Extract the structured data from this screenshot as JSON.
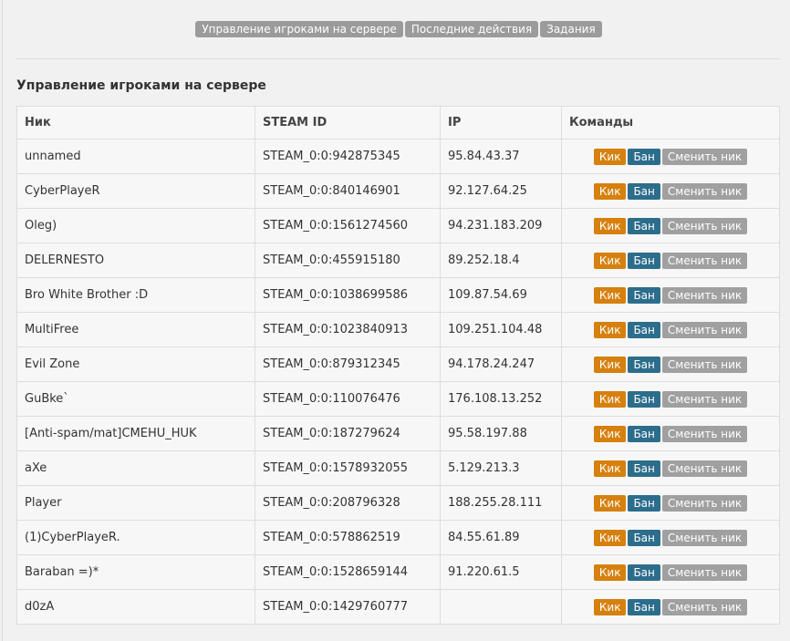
{
  "tabs": [
    "Управление игроками на сервере",
    "Последние действия",
    "Задания"
  ],
  "section_title": "Управление игроками на сервере",
  "table": {
    "headers": [
      "Ник",
      "STEAM ID",
      "IP",
      "Команды"
    ],
    "rows": [
      [
        "unnamed",
        "STEAM_0:0:942875345",
        "95.84.43.37"
      ],
      [
        "CyberPlayeR",
        "STEAM_0:0:840146901",
        "92.127.64.25"
      ],
      [
        "Oleg)",
        "STEAM_0:0:1561274560",
        "94.231.183.209"
      ],
      [
        "DELERNESTO",
        "STEAM_0:0:455915180",
        "89.252.18.4"
      ],
      [
        "Bro White Brother :D",
        "STEAM_0:0:1038699586",
        "109.87.54.69"
      ],
      [
        "MultiFree",
        "STEAM_0:0:1023840913",
        "109.251.104.48"
      ],
      [
        "Evil Zone",
        "STEAM_0:0:879312345",
        "94.178.24.247"
      ],
      [
        "GuBke`",
        "STEAM_0:0:110076476",
        "176.108.13.252"
      ],
      [
        "[Anti-spam/mat]CMEHU_HUK",
        "STEAM_0:0:187279624",
        "95.58.197.88"
      ],
      [
        "aXe",
        "STEAM_0:0:1578932055",
        "5.129.213.3"
      ],
      [
        "Player",
        "STEAM_0:0:208796328",
        "188.255.28.111"
      ],
      [
        "(1)CyberPlayeR.",
        "STEAM_0:0:578862519",
        "84.55.61.89"
      ],
      [
        "Baraban =)*",
        "STEAM_0:0:1528659144",
        "91.220.61.5"
      ],
      [
        "d0zA",
        "STEAM_0:0:1429760777",
        null
      ]
    ],
    "actions": [
      "Кик",
      "Бан",
      "Сменить ник"
    ]
  }
}
